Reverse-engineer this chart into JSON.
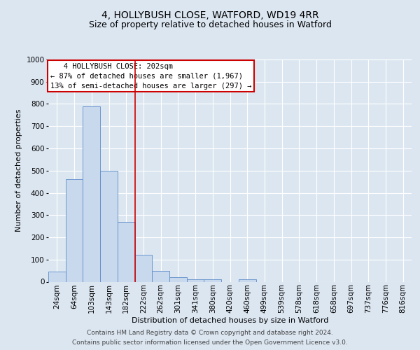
{
  "title": "4, HOLLYBUSH CLOSE, WATFORD, WD19 4RR",
  "subtitle": "Size of property relative to detached houses in Watford",
  "xlabel": "Distribution of detached houses by size in Watford",
  "ylabel": "Number of detached properties",
  "categories": [
    "24sqm",
    "64sqm",
    "103sqm",
    "143sqm",
    "182sqm",
    "222sqm",
    "262sqm",
    "301sqm",
    "341sqm",
    "380sqm",
    "420sqm",
    "460sqm",
    "499sqm",
    "539sqm",
    "578sqm",
    "618sqm",
    "658sqm",
    "697sqm",
    "737sqm",
    "776sqm",
    "816sqm"
  ],
  "values": [
    45,
    460,
    790,
    500,
    270,
    120,
    50,
    20,
    12,
    12,
    0,
    12,
    0,
    0,
    0,
    0,
    0,
    0,
    0,
    0,
    0
  ],
  "bar_color": "#c9d9ed",
  "bar_edge_color": "#5b8bc9",
  "background_color": "#dce6f1",
  "plot_bg_color": "#dce6f1",
  "grid_color": "#ffffff",
  "ylim": [
    0,
    1000
  ],
  "yticks": [
    0,
    100,
    200,
    300,
    400,
    500,
    600,
    700,
    800,
    900,
    1000
  ],
  "red_line_x": 4.5,
  "annotation_line1": "   4 HOLLYBUSH CLOSE: 202sqm",
  "annotation_line2": "← 87% of detached houses are smaller (1,967)",
  "annotation_line3": "13% of semi-detached houses are larger (297) →",
  "annotation_box_color": "#ffffff",
  "annotation_box_border": "#cc0000",
  "footer_line1": "Contains HM Land Registry data © Crown copyright and database right 2024.",
  "footer_line2": "Contains public sector information licensed under the Open Government Licence v3.0.",
  "title_fontsize": 10,
  "subtitle_fontsize": 9,
  "axis_label_fontsize": 8,
  "tick_fontsize": 7.5,
  "annotation_fontsize": 7.5,
  "footer_fontsize": 6.5
}
